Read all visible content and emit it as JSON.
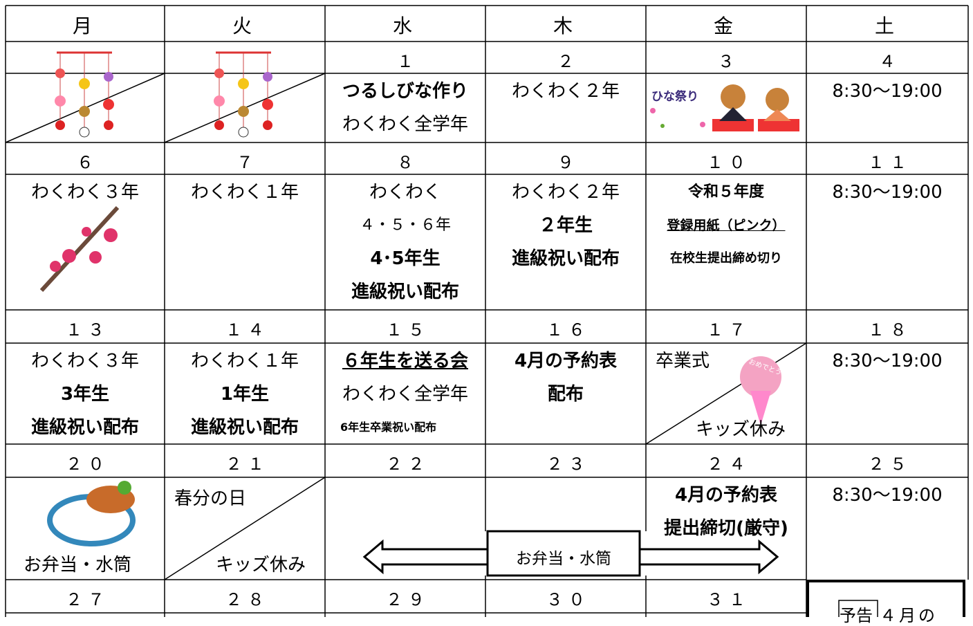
{
  "header": {
    "days": [
      "月",
      "火",
      "水",
      "木",
      "金",
      "土"
    ]
  },
  "weeks": [
    {
      "dates": [
        null,
        null,
        "１",
        "２",
        "３",
        "４"
      ],
      "cells": [
        [],
        [],
        [
          "つるしびな作り",
          "わくわく全学年"
        ],
        [
          "わくわく２年"
        ],
        [
          "ひな祭り"
        ],
        [
          "8:30〜19:00"
        ]
      ]
    },
    {
      "dates": [
        "６",
        "７",
        "８",
        "９",
        "１０",
        "１１"
      ],
      "cells": [
        [
          "わくわく３年"
        ],
        [
          "わくわく１年"
        ],
        [
          "わくわく",
          "４・５・６年",
          "4･5年生",
          "進級祝い配布"
        ],
        [
          "わくわく２年",
          "２年生",
          "進級祝い配布"
        ],
        [
          "令和５年度",
          "登録用紙（ピンク）",
          "在校生提出締め切り"
        ],
        [
          "8:30〜19:00"
        ]
      ]
    },
    {
      "dates": [
        "１３",
        "１４",
        "１５",
        "１６",
        "１７",
        "１８"
      ],
      "cells": [
        [
          "わくわく３年",
          "3年生",
          "進級祝い配布"
        ],
        [
          "わくわく１年",
          "1年生",
          "進級祝い配布"
        ],
        [
          "６年生を送る会",
          "わくわく全学年",
          "6年生卒業祝い配布"
        ],
        [
          "4月の予約表",
          "配布"
        ],
        [
          "卒業式",
          "おめでとう",
          "キッズ休み"
        ],
        [
          "8:30〜19:00"
        ]
      ]
    },
    {
      "dates": [
        "２０",
        "２１",
        "２２",
        "２３",
        "２４",
        "２５"
      ],
      "cells": [
        [
          "お弁当・水筒"
        ],
        [
          "春分の日",
          "キッズ休み"
        ],
        [],
        [],
        [
          "4月の予約表",
          "提出締切(厳守)"
        ],
        [
          "8:30〜19:00"
        ]
      ],
      "banner": "お弁当・水筒"
    },
    {
      "dates": [
        "２７",
        "２８",
        "２９",
        "３０",
        "３１"
      ],
      "notice": {
        "label": "予告",
        "text": "４月の"
      }
    }
  ]
}
